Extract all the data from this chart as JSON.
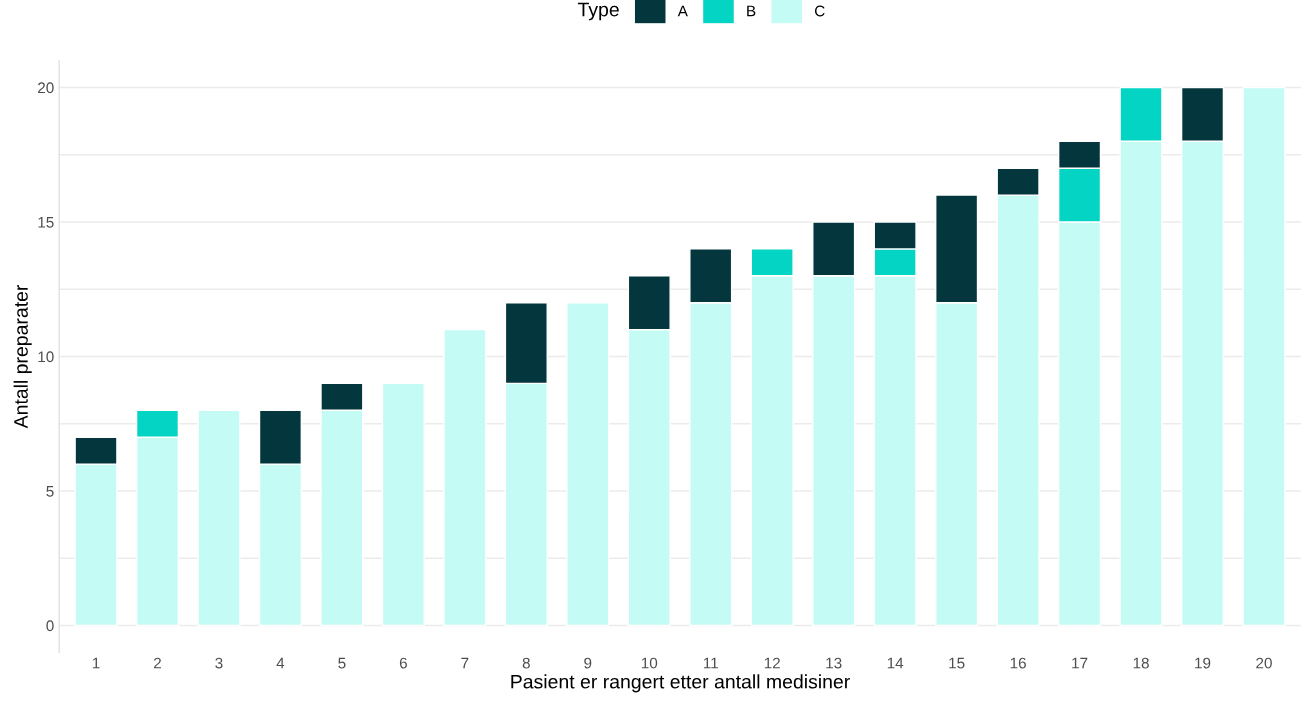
{
  "chart_data": {
    "type": "bar",
    "stacked": true,
    "xlabel": "Pasient er rangert etter antall medisiner",
    "ylabel": "Antall preparater",
    "legend_title": "Type",
    "legend": "top",
    "grid": "y",
    "categories": [
      "1",
      "2",
      "3",
      "4",
      "5",
      "6",
      "7",
      "8",
      "9",
      "10",
      "11",
      "12",
      "13",
      "14",
      "15",
      "16",
      "17",
      "18",
      "19",
      "20"
    ],
    "ylim": [
      -1,
      21
    ],
    "yticks": [
      0,
      {
        "value": 2.5,
        "label": null
      },
      5,
      {
        "value": 7.5,
        "label": null
      },
      10,
      {
        "value": 12.5,
        "label": null
      },
      15,
      {
        "value": 17.5,
        "label": null
      },
      20
    ],
    "series": [
      {
        "name": "C",
        "color": "#c4fbf5",
        "values": [
          6,
          7,
          8,
          6,
          8,
          9,
          11,
          9,
          12,
          11,
          12,
          13,
          13,
          13,
          12,
          16,
          15,
          18,
          18,
          20
        ]
      },
      {
        "name": "B",
        "color": "#04d4c4",
        "values": [
          null,
          1,
          null,
          null,
          null,
          null,
          null,
          null,
          null,
          null,
          null,
          1,
          null,
          1,
          null,
          null,
          2,
          2,
          null,
          null
        ]
      },
      {
        "name": "A",
        "color": "#03363d",
        "values": [
          1,
          null,
          null,
          2,
          1,
          null,
          null,
          3,
          null,
          2,
          2,
          null,
          2,
          1,
          4,
          1,
          1,
          null,
          2,
          null
        ]
      }
    ]
  }
}
